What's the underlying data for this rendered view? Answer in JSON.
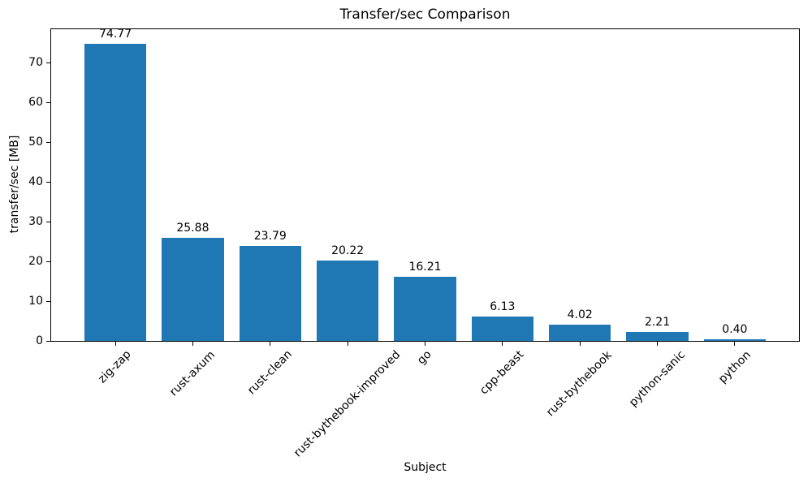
{
  "chart_data": {
    "type": "bar",
    "title": "Transfer/sec Comparison",
    "xlabel": "Subject",
    "ylabel": "transfer/sec [MB]",
    "categories": [
      "zig-zap",
      "rust-axum",
      "rust-clean",
      "rust-bythebook-improved",
      "go",
      "cpp-beast",
      "rust-bythebook",
      "python-sanic",
      "python"
    ],
    "values": [
      74.77,
      25.88,
      23.79,
      20.22,
      16.21,
      6.13,
      4.02,
      2.21,
      0.4
    ],
    "value_labels": [
      "74.77",
      "25.88",
      "23.79",
      "20.22",
      "16.21",
      "6.13",
      "4.02",
      "2.21",
      "0.40"
    ],
    "yticks": [
      0,
      10,
      20,
      30,
      40,
      50,
      60,
      70
    ],
    "ylim": [
      0,
      78.4
    ],
    "xtick_rotation_deg": 45,
    "grid": false,
    "legend": null,
    "bar_color": "#1f77b4",
    "axis_color": "#000000",
    "background_color": "#ffffff"
  }
}
